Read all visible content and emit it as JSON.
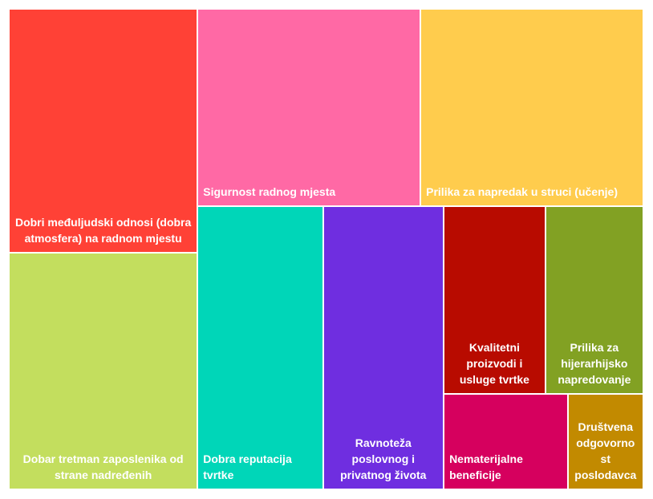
{
  "chart_data": {
    "type": "treemap",
    "categories": [
      "Dobri međuljudski odnosi (dobra atmosfera) na radnom mjestu",
      "Sigurnost radnog mjesta",
      "Prilika za napredak u struci (učenje)",
      "Dobar tretman zaposlenika od strane nadređenih",
      "Dobra reputacija tvrtke",
      "Ravnoteža poslovnog i privatnog života",
      "Kvalitetni proizvodi i usluge tvrtke",
      "Prilika za hijerarhijsko napredovanje",
      "Nematerijalne beneficije",
      "Društvena odgovornost poslodavca"
    ],
    "values": [
      70,
      67,
      67,
      68,
      54,
      52,
      29,
      28,
      18,
      11
    ],
    "colors": [
      "#ff4136",
      "#ff69a5",
      "#ffcc4d",
      "#c3de5e",
      "#00d6b8",
      "#6f2ee0",
      "#b80b00",
      "#82a123",
      "#d6005e",
      "#c28a00"
    ]
  }
}
